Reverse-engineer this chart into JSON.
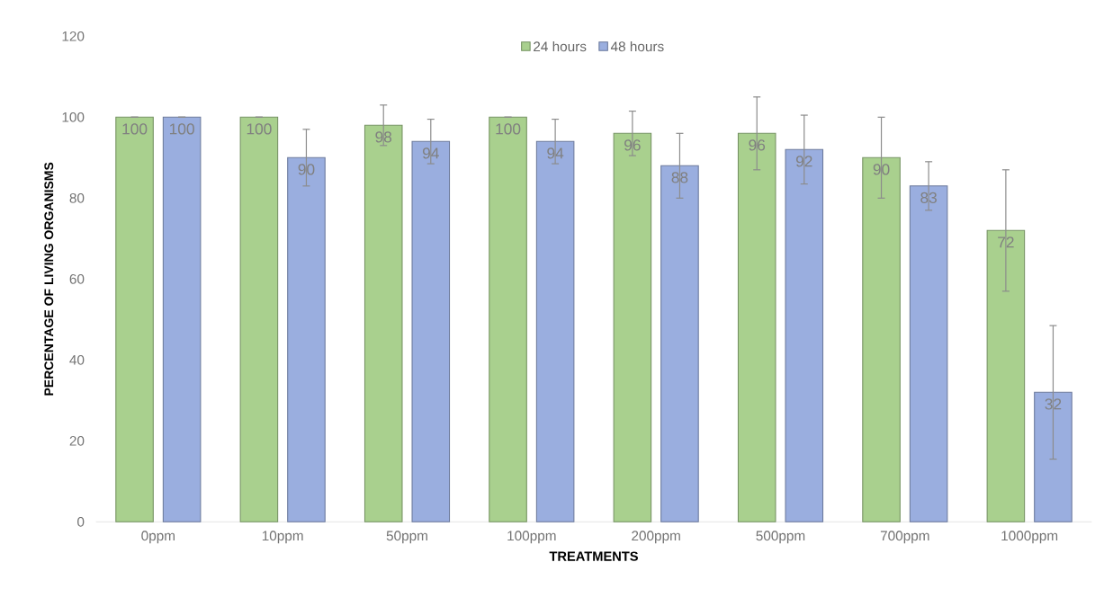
{
  "chart_data": {
    "type": "bar",
    "xlabel": "TREATMENTS",
    "ylabel": "PERCENTAGE OF LIVING ORGANISMS",
    "categories": [
      "0ppm",
      "10ppm",
      "50ppm",
      "100ppm",
      "200ppm",
      "500ppm",
      "700ppm",
      "1000ppm"
    ],
    "series": [
      {
        "name": "24 hours",
        "color": "#a9d08e",
        "values": [
          100,
          100,
          98,
          100,
          96,
          96,
          90,
          72
        ],
        "errors": [
          0,
          0,
          5,
          0,
          5.5,
          9,
          10,
          15
        ]
      },
      {
        "name": "48 hours",
        "color": "#9aaedf",
        "values": [
          100,
          90,
          94,
          94,
          88,
          92,
          83,
          32
        ],
        "errors": [
          0,
          7,
          5.5,
          5.5,
          8,
          8.5,
          6,
          16.5
        ]
      }
    ],
    "ylim": [
      0,
      120
    ],
    "yticks": [
      0,
      20,
      40,
      60,
      80,
      100,
      120
    ],
    "data_labels": true,
    "legend": "top",
    "grid": false
  }
}
